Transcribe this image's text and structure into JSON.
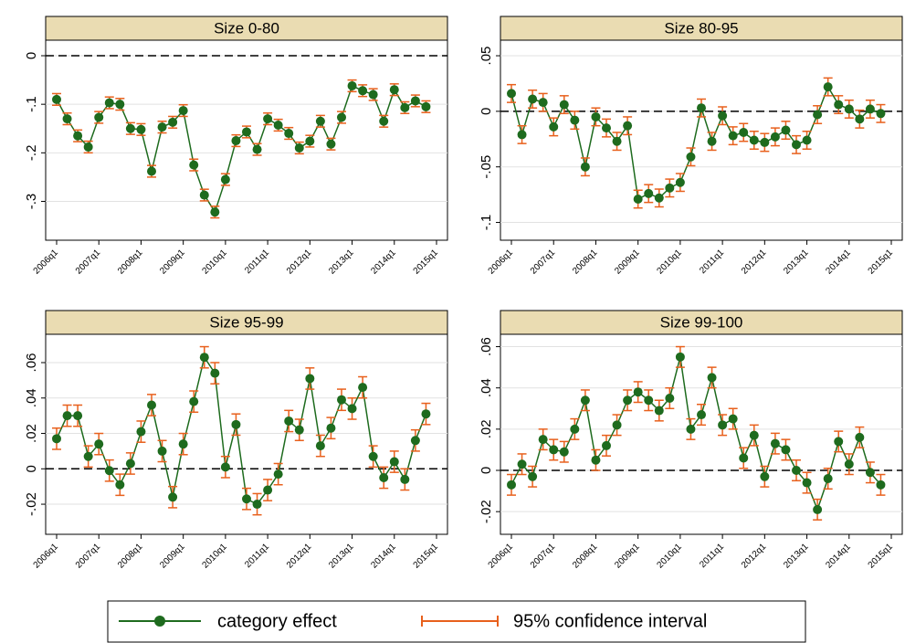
{
  "chart_data": [
    {
      "type": "line",
      "title": "Size 0-80",
      "categories": [
        "2006q1",
        null,
        null,
        null,
        "2007q1",
        null,
        null,
        null,
        "2008q1",
        null,
        null,
        null,
        "2009q1",
        null,
        null,
        null,
        "2010q1",
        null,
        null,
        null,
        "2011q1",
        null,
        null,
        null,
        "2012q1",
        null,
        null,
        null,
        "2013q1",
        null,
        null,
        null,
        "2014q1",
        null,
        null,
        null,
        "2015q1"
      ],
      "series": [
        {
          "color": "#1e6b1e",
          "error_color": "#e8601c",
          "values": [
            -0.09,
            -0.13,
            -0.165,
            -0.188,
            -0.127,
            -0.097,
            -0.1,
            -0.15,
            -0.152,
            -0.238,
            -0.147,
            -0.137,
            -0.113,
            -0.225,
            -0.287,
            -0.322,
            -0.255,
            -0.175,
            -0.157,
            -0.193,
            -0.13,
            -0.143,
            -0.16,
            -0.19,
            -0.176,
            -0.135,
            -0.182,
            -0.127,
            -0.062,
            -0.072,
            -0.08,
            -0.135,
            -0.07,
            -0.107,
            -0.093,
            -0.105,
            null
          ],
          "errors": [
            0.012,
            0.012,
            0.012,
            0.012,
            0.012,
            0.012,
            0.012,
            0.012,
            0.012,
            0.012,
            0.012,
            0.012,
            0.012,
            0.012,
            0.012,
            0.012,
            0.012,
            0.012,
            0.012,
            0.012,
            0.012,
            0.012,
            0.012,
            0.012,
            0.012,
            0.012,
            0.012,
            0.012,
            0.012,
            0.012,
            0.012,
            0.012,
            0.012,
            0.012,
            0.012,
            0.012,
            null
          ]
        }
      ],
      "ylim": [
        -0.38,
        0.032
      ],
      "yticks": [
        0,
        {
          "value": -0.1,
          "label": "-.1"
        },
        {
          "value": -0.2,
          "label": "-.2"
        },
        {
          "value": -0.3,
          "label": "-.3"
        }
      ],
      "grid": true,
      "hline": 0
    },
    {
      "type": "line",
      "title": "Size 80-95",
      "categories": [
        "2006q1",
        null,
        null,
        null,
        "2007q1",
        null,
        null,
        null,
        "2008q1",
        null,
        null,
        null,
        "2009q1",
        null,
        null,
        null,
        "2010q1",
        null,
        null,
        null,
        "2011q1",
        null,
        null,
        null,
        "2012q1",
        null,
        null,
        null,
        "2013q1",
        null,
        null,
        null,
        "2014q1",
        null,
        null,
        null,
        "2015q1"
      ],
      "series": [
        {
          "color": "#1e6b1e",
          "error_color": "#e8601c",
          "values": [
            0.016,
            -0.021,
            0.011,
            0.008,
            -0.014,
            0.006,
            -0.008,
            -0.05,
            -0.005,
            -0.015,
            -0.027,
            -0.013,
            -0.079,
            -0.074,
            -0.078,
            -0.069,
            -0.064,
            -0.041,
            0.003,
            -0.027,
            -0.004,
            -0.022,
            -0.019,
            -0.026,
            -0.028,
            -0.023,
            -0.017,
            -0.03,
            -0.026,
            -0.003,
            0.022,
            0.006,
            0.002,
            -0.007,
            0.002,
            -0.002,
            null
          ],
          "errors": [
            0.008,
            0.008,
            0.008,
            0.008,
            0.008,
            0.008,
            0.008,
            0.008,
            0.008,
            0.008,
            0.008,
            0.008,
            0.008,
            0.008,
            0.008,
            0.008,
            0.008,
            0.008,
            0.008,
            0.008,
            0.008,
            0.008,
            0.008,
            0.008,
            0.008,
            0.008,
            0.008,
            0.008,
            0.008,
            0.008,
            0.008,
            0.008,
            0.008,
            0.008,
            0.008,
            0.008,
            null
          ]
        }
      ],
      "ylim": [
        -0.116,
        0.064
      ],
      "yticks": [
        {
          "value": 0.05,
          "label": ".05"
        },
        0,
        {
          "value": -0.05,
          "label": "-.05"
        },
        {
          "value": -0.1,
          "label": "-.1"
        }
      ],
      "grid": true,
      "hline": 0
    },
    {
      "type": "line",
      "title": "Size 95-99",
      "categories": [
        "2006q1",
        null,
        null,
        null,
        "2007q1",
        null,
        null,
        null,
        "2008q1",
        null,
        null,
        null,
        "2009q1",
        null,
        null,
        null,
        "2010q1",
        null,
        null,
        null,
        "2011q1",
        null,
        null,
        null,
        "2012q1",
        null,
        null,
        null,
        "2013q1",
        null,
        null,
        null,
        "2014q1",
        null,
        null,
        null,
        "2015q1"
      ],
      "series": [
        {
          "color": "#1e6b1e",
          "error_color": "#e8601c",
          "values": [
            0.017,
            0.03,
            0.03,
            0.007,
            0.014,
            -0.001,
            -0.009,
            0.003,
            0.021,
            0.036,
            0.01,
            -0.016,
            0.014,
            0.038,
            0.063,
            0.054,
            0.001,
            0.025,
            -0.017,
            -0.02,
            -0.012,
            -0.003,
            0.027,
            0.022,
            0.051,
            0.013,
            0.023,
            0.039,
            0.034,
            0.046,
            0.007,
            -0.005,
            0.004,
            -0.006,
            0.016,
            0.031,
            null
          ],
          "errors": [
            0.006,
            0.006,
            0.006,
            0.006,
            0.006,
            0.006,
            0.006,
            0.006,
            0.006,
            0.006,
            0.006,
            0.006,
            0.006,
            0.006,
            0.006,
            0.006,
            0.006,
            0.006,
            0.006,
            0.006,
            0.006,
            0.006,
            0.006,
            0.006,
            0.006,
            0.006,
            0.006,
            0.006,
            0.006,
            0.006,
            0.006,
            0.006,
            0.006,
            0.006,
            0.006,
            0.006,
            null
          ]
        }
      ],
      "ylim": [
        -0.037,
        0.076
      ],
      "yticks": [
        {
          "value": 0.06,
          "label": ".06"
        },
        {
          "value": 0.04,
          "label": ".04"
        },
        {
          "value": 0.02,
          "label": ".02"
        },
        0,
        {
          "value": -0.02,
          "label": "-.02"
        }
      ],
      "grid": true,
      "hline": 0
    },
    {
      "type": "line",
      "title": "Size 99-100",
      "categories": [
        "2006q1",
        null,
        null,
        null,
        "2007q1",
        null,
        null,
        null,
        "2008q1",
        null,
        null,
        null,
        "2009q1",
        null,
        null,
        null,
        "2010q1",
        null,
        null,
        null,
        "2011q1",
        null,
        null,
        null,
        "2012q1",
        null,
        null,
        null,
        "2013q1",
        null,
        null,
        null,
        "2014q1",
        null,
        null,
        null,
        "2015q1"
      ],
      "series": [
        {
          "color": "#1e6b1e",
          "error_color": "#e8601c",
          "values": [
            -0.007,
            0.003,
            -0.003,
            0.015,
            0.01,
            0.009,
            0.02,
            0.034,
            0.005,
            0.012,
            0.022,
            0.034,
            0.038,
            0.034,
            0.029,
            0.035,
            0.055,
            0.02,
            0.027,
            0.045,
            0.022,
            0.025,
            0.006,
            0.017,
            -0.003,
            0.013,
            0.01,
            0.0,
            -0.006,
            -0.019,
            -0.004,
            0.014,
            0.003,
            0.016,
            -0.001,
            -0.007,
            null
          ],
          "errors": [
            0.005,
            0.005,
            0.005,
            0.005,
            0.005,
            0.005,
            0.005,
            0.005,
            0.005,
            0.005,
            0.005,
            0.005,
            0.005,
            0.005,
            0.005,
            0.005,
            0.005,
            0.005,
            0.005,
            0.005,
            0.005,
            0.005,
            0.005,
            0.005,
            0.005,
            0.005,
            0.005,
            0.005,
            0.005,
            0.005,
            0.005,
            0.005,
            0.005,
            0.005,
            0.005,
            0.005,
            null
          ]
        }
      ],
      "ylim": [
        -0.031,
        0.066
      ],
      "yticks": [
        {
          "value": 0.06,
          "label": ".06"
        },
        {
          "value": 0.04,
          "label": ".04"
        },
        {
          "value": 0.02,
          "label": ".02"
        },
        0,
        {
          "value": -0.02,
          "label": "-.02"
        }
      ],
      "grid": true,
      "hline": 0
    }
  ],
  "legend": {
    "items": [
      {
        "name": "category effect",
        "color": "#1e6b1e"
      },
      {
        "name": "95% confidence interval",
        "color": "#e8601c"
      }
    ]
  }
}
